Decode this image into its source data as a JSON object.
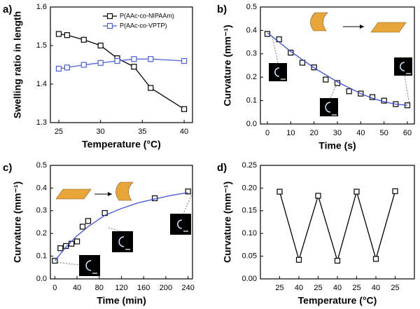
{
  "chart_data": [
    {
      "type": "line",
      "panel_label": "a)",
      "xlabel": "Temperature (°C)",
      "ylabel": "Swelling ratio in length",
      "xlim": [
        24,
        41
      ],
      "xticks": [
        25,
        30,
        35,
        40
      ],
      "ylim": [
        1.3,
        1.6
      ],
      "yticks": [
        1.3,
        1.4,
        1.5,
        1.6
      ],
      "legend": "upper right",
      "series": [
        {
          "name": "P(AAc-co-NIPAAm)",
          "color": "#000000",
          "marker": "square",
          "line": true,
          "x": [
            25,
            26,
            28,
            30,
            32,
            34,
            36,
            40
          ],
          "values": [
            1.53,
            1.527,
            1.515,
            1.5,
            1.467,
            1.445,
            1.39,
            1.335
          ]
        },
        {
          "name": "P(AAc-co-VPTP)",
          "color": "#4a5fd6",
          "marker": "square",
          "line": true,
          "x": [
            25,
            26,
            28,
            30,
            32,
            34,
            36,
            40
          ],
          "values": [
            1.44,
            1.443,
            1.45,
            1.455,
            1.46,
            1.465,
            1.465,
            1.46
          ]
        }
      ]
    },
    {
      "type": "scatter",
      "panel_label": "b)",
      "xlabel": "Time (s)",
      "ylabel": "Curvature (mm⁻¹)",
      "xlim": [
        -3,
        63
      ],
      "xticks": [
        0,
        10,
        20,
        30,
        40,
        50,
        60
      ],
      "ylim": [
        0,
        0.5
      ],
      "yticks": [
        {
          "value": 0,
          "label": "0.0"
        },
        0.1,
        0.2,
        0.3,
        0.4,
        0.5
      ],
      "series": [
        {
          "color": "#000000",
          "marker": "square",
          "line": false,
          "x": [
            0,
            5,
            10,
            15,
            20,
            25,
            30,
            35,
            40,
            45,
            50,
            55,
            60
          ],
          "values": [
            0.385,
            0.362,
            0.305,
            0.262,
            0.242,
            0.19,
            0.175,
            0.14,
            0.13,
            0.115,
            0.1,
            0.085,
            0.08
          ]
        },
        {
          "color": "#3b4fd0",
          "line": true,
          "x": [
            0,
            5,
            10,
            15,
            20,
            25,
            30,
            35,
            40,
            45,
            50,
            55,
            60
          ],
          "values": [
            0.39,
            0.35,
            0.31,
            0.275,
            0.24,
            0.21,
            0.18,
            0.155,
            0.13,
            0.11,
            0.095,
            0.085,
            0.08
          ]
        }
      ]
    },
    {
      "type": "scatter",
      "panel_label": "c)",
      "xlabel": "Time (min)",
      "ylabel": "Curvature (mm⁻¹)",
      "xlim": [
        -8,
        248
      ],
      "xticks": [
        0,
        40,
        80,
        120,
        160,
        200,
        240
      ],
      "ylim": [
        0,
        0.5
      ],
      "yticks": [
        {
          "value": 0,
          "label": "0.0"
        },
        0.1,
        0.2,
        0.3,
        0.4,
        0.5
      ],
      "series": [
        {
          "color": "#000000",
          "marker": "square",
          "line": false,
          "x": [
            0,
            10,
            20,
            30,
            40,
            50,
            60,
            90,
            180,
            240
          ],
          "values": [
            0.08,
            0.135,
            0.145,
            0.155,
            0.165,
            0.23,
            0.255,
            0.29,
            0.355,
            0.385
          ]
        },
        {
          "color": "#3b4fd0",
          "line": true,
          "x": [
            0,
            20,
            40,
            60,
            90,
            120,
            150,
            180,
            210,
            240
          ],
          "values": [
            0.08,
            0.14,
            0.19,
            0.23,
            0.28,
            0.31,
            0.335,
            0.352,
            0.368,
            0.38
          ]
        }
      ]
    },
    {
      "type": "line",
      "panel_label": "d)",
      "xlabel": "Temperature (°C)",
      "ylabel": "Curvature (mm⁻¹)",
      "categories": [
        "25",
        "40",
        "25",
        "40",
        "25",
        "40",
        "25"
      ],
      "ylim": [
        0,
        0.25
      ],
      "yticks": [
        {
          "value": 0,
          "label": "0.00"
        },
        {
          "value": 0.05,
          "label": "0.05"
        },
        {
          "value": 0.1,
          "label": "0.10"
        },
        {
          "value": 0.15,
          "label": "0.15"
        },
        {
          "value": 0.2,
          "label": "0.20"
        },
        {
          "value": 0.25,
          "label": "0.25"
        }
      ],
      "series": [
        {
          "color": "#000000",
          "marker": "square",
          "line": true,
          "values": [
            0.192,
            0.042,
            0.183,
            0.04,
            0.192,
            0.044,
            0.193
          ]
        }
      ]
    }
  ]
}
